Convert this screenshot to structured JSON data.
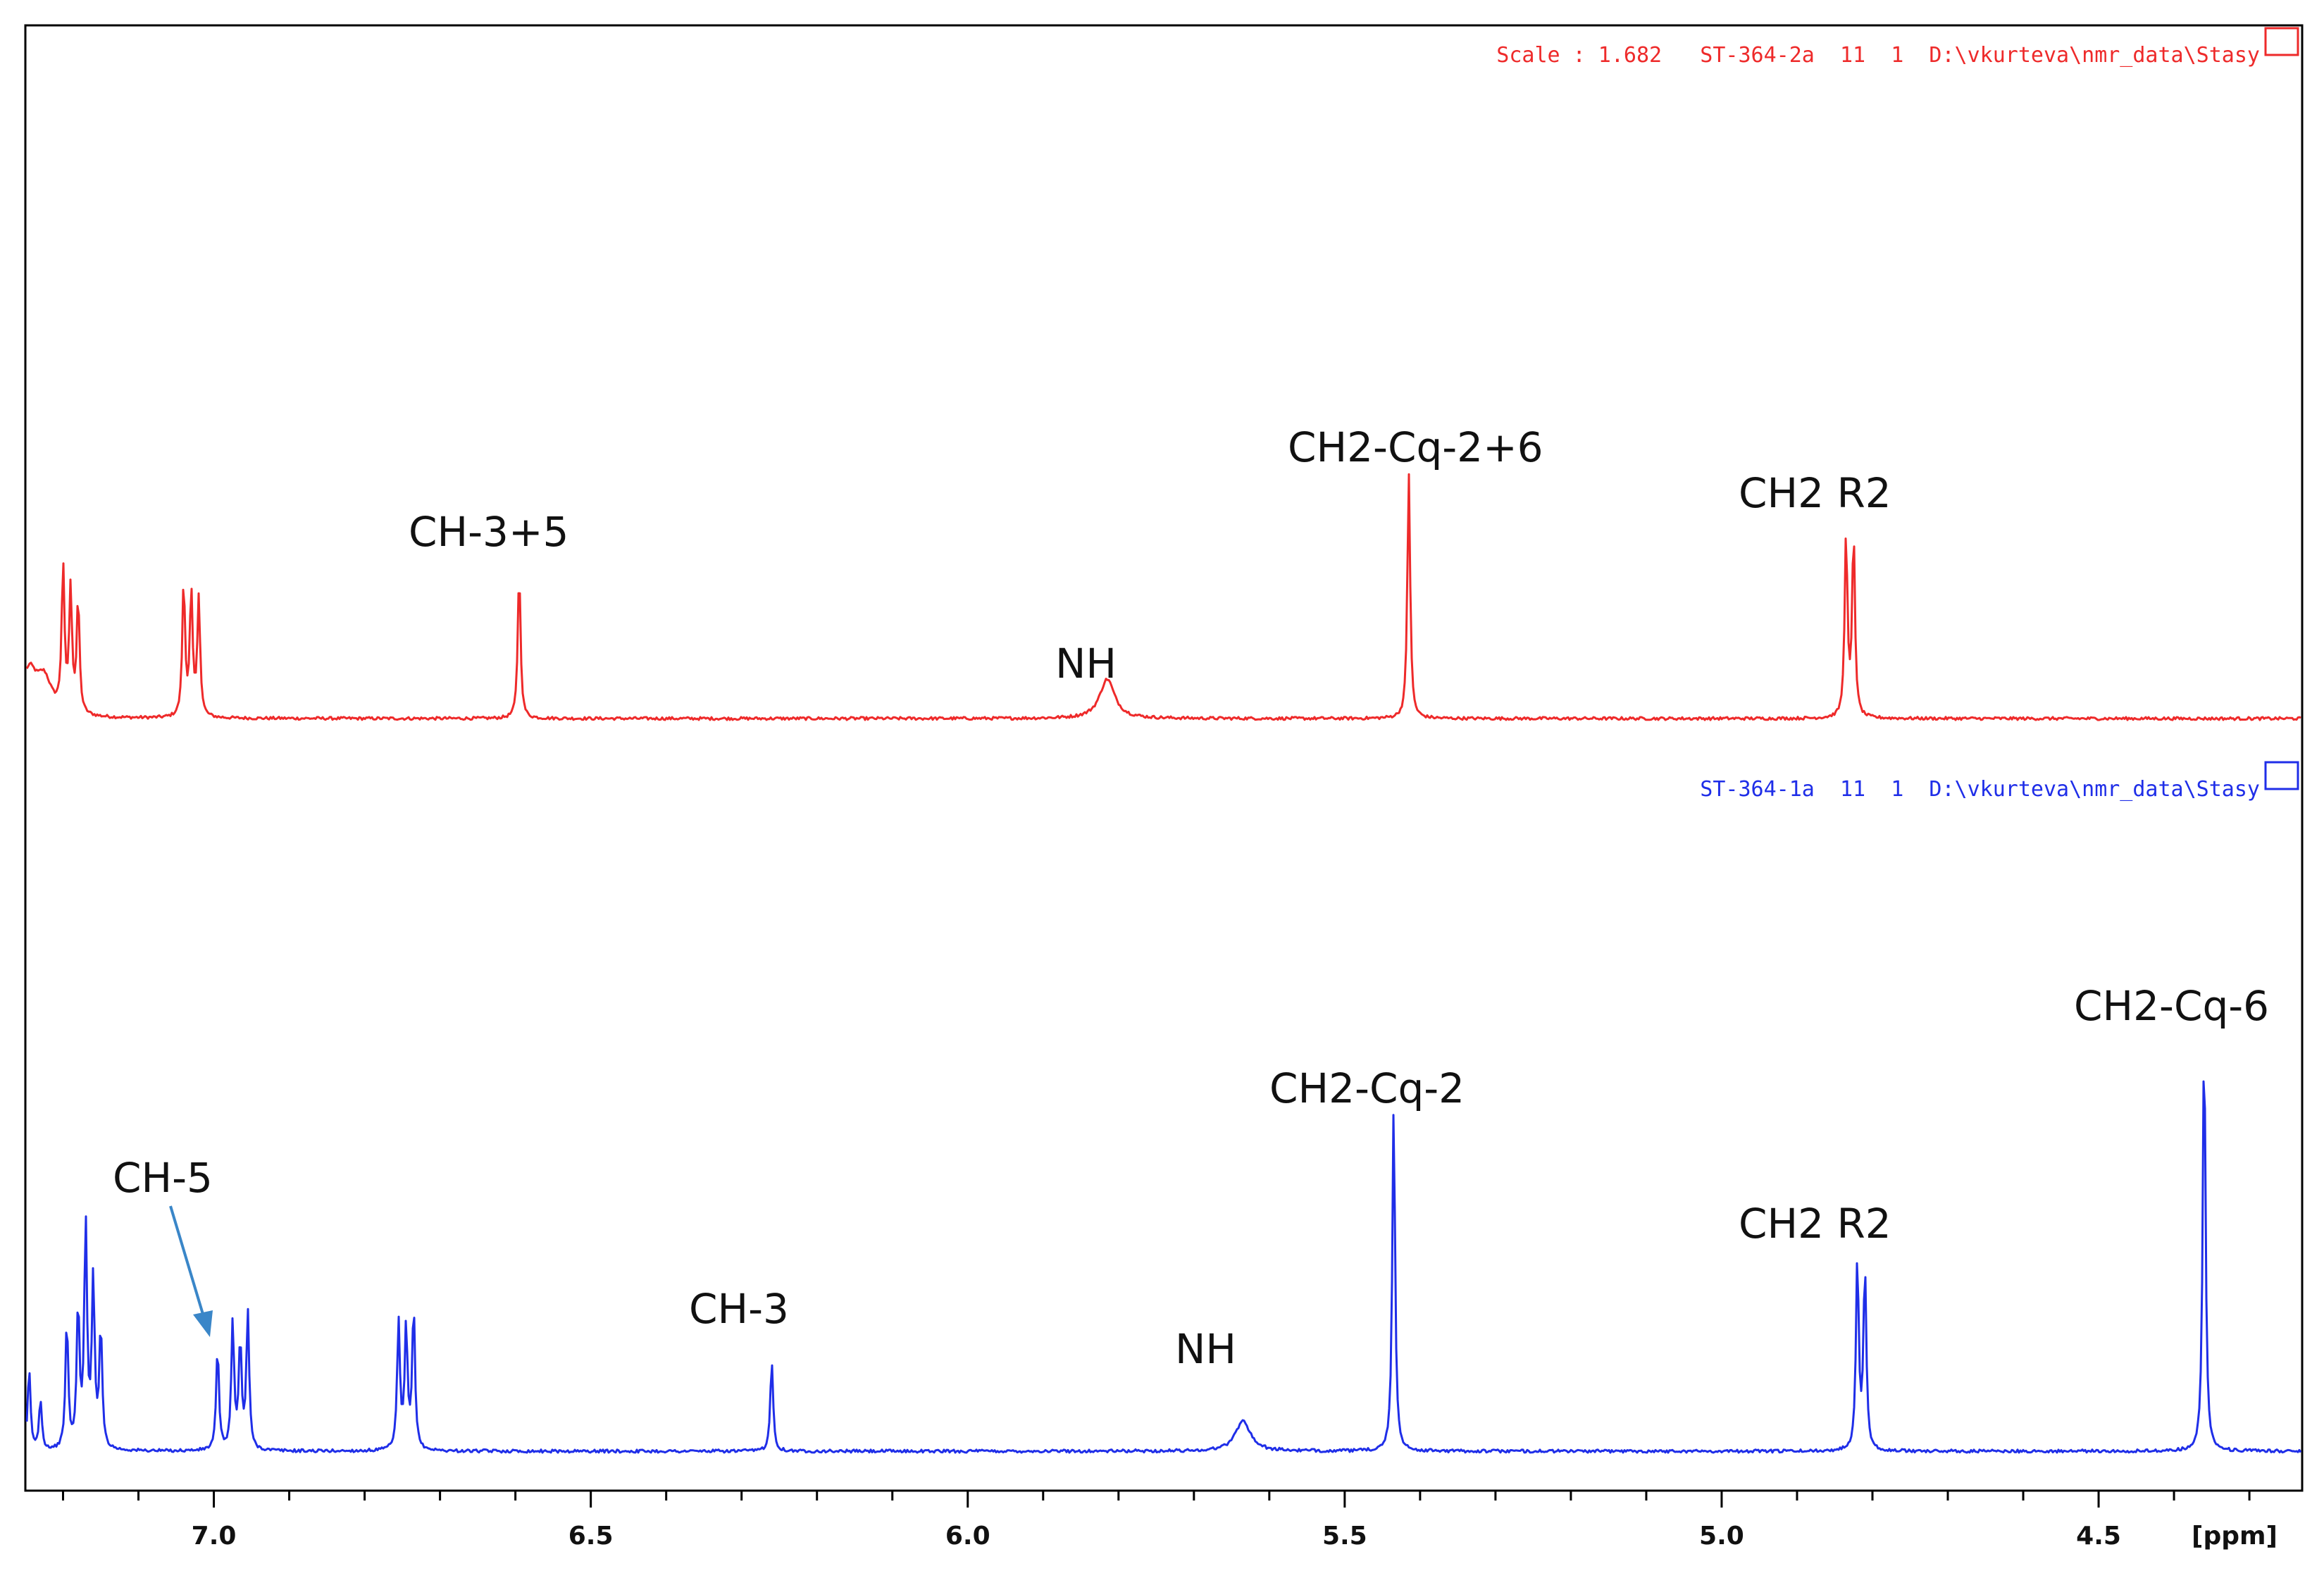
{
  "colors": {
    "top": "#ee2a2a",
    "bottom": "#1f2ee8",
    "axis": "#000000",
    "arrow": "#3a86c8"
  },
  "spectra_headers": {
    "top": "Scale : 1.682   ST-364-2a  11  1  D:\\vkurteva\\nmr_data\\Stasy",
    "bottom": "ST-364-1a  11  1  D:\\vkurteva\\nmr_data\\Stasy"
  },
  "labels": {
    "top_ch35": "CH-3+5",
    "top_nh": "NH",
    "top_ch2_cq_26": "CH2-Cq-2+6",
    "top_ch2_r2": "CH2 R2",
    "bot_ch5": "CH-5",
    "bot_ch3": "CH-3",
    "bot_nh": "NH",
    "bot_ch2_cq_2": "CH2-Cq-2",
    "bot_ch2_r2": "CH2 R2",
    "bot_ch2_cq_6": "CH2-Cq-6"
  },
  "chart_data": {
    "type": "line",
    "xlabel": "[ppm]",
    "xlim": [
      7.25,
      4.23
    ],
    "x_ticks": [
      "7.0",
      "6.5",
      "6.0",
      "5.5",
      "5.0",
      "4.5"
    ],
    "grid": false,
    "stacked": true,
    "series": [
      {
        "trace": "top",
        "peaks": [
          {
            "ppm": 7.245,
            "height": 0.09
          },
          {
            "ppm": 7.225,
            "height": 0.07
          },
          {
            "ppm": 7.2,
            "height": 0.29
          },
          {
            "ppm": 7.19,
            "height": 0.25
          },
          {
            "ppm": 7.18,
            "height": 0.23
          },
          {
            "ppm": 7.04,
            "height": 0.27
          },
          {
            "ppm": 7.03,
            "height": 0.25
          },
          {
            "ppm": 7.02,
            "height": 0.24
          },
          {
            "ppm": 6.595,
            "height": 0.3
          },
          {
            "ppm": 5.815,
            "height": 0.08
          },
          {
            "ppm": 5.415,
            "height": 0.5
          },
          {
            "ppm": 4.835,
            "height": 0.37
          },
          {
            "ppm": 4.825,
            "height": 0.37
          }
        ]
      },
      {
        "trace": "bottom",
        "peaks": [
          {
            "ppm": 7.245,
            "height": 0.16
          },
          {
            "ppm": 7.23,
            "height": 0.1
          },
          {
            "ppm": 7.195,
            "height": 0.25
          },
          {
            "ppm": 7.18,
            "height": 0.28
          },
          {
            "ppm": 7.17,
            "height": 0.44
          },
          {
            "ppm": 7.16,
            "height": 0.33
          },
          {
            "ppm": 7.15,
            "height": 0.24
          },
          {
            "ppm": 6.995,
            "height": 0.2
          },
          {
            "ppm": 6.975,
            "height": 0.25
          },
          {
            "ppm": 6.965,
            "height": 0.21
          },
          {
            "ppm": 6.955,
            "height": 0.27
          },
          {
            "ppm": 6.755,
            "height": 0.25
          },
          {
            "ppm": 6.745,
            "height": 0.24
          },
          {
            "ppm": 6.735,
            "height": 0.28
          },
          {
            "ppm": 6.26,
            "height": 0.18
          },
          {
            "ppm": 5.635,
            "height": 0.06
          },
          {
            "ppm": 5.435,
            "height": 0.68
          },
          {
            "ppm": 4.82,
            "height": 0.38
          },
          {
            "ppm": 4.81,
            "height": 0.36
          },
          {
            "ppm": 4.36,
            "height": 0.83
          }
        ]
      }
    ]
  }
}
